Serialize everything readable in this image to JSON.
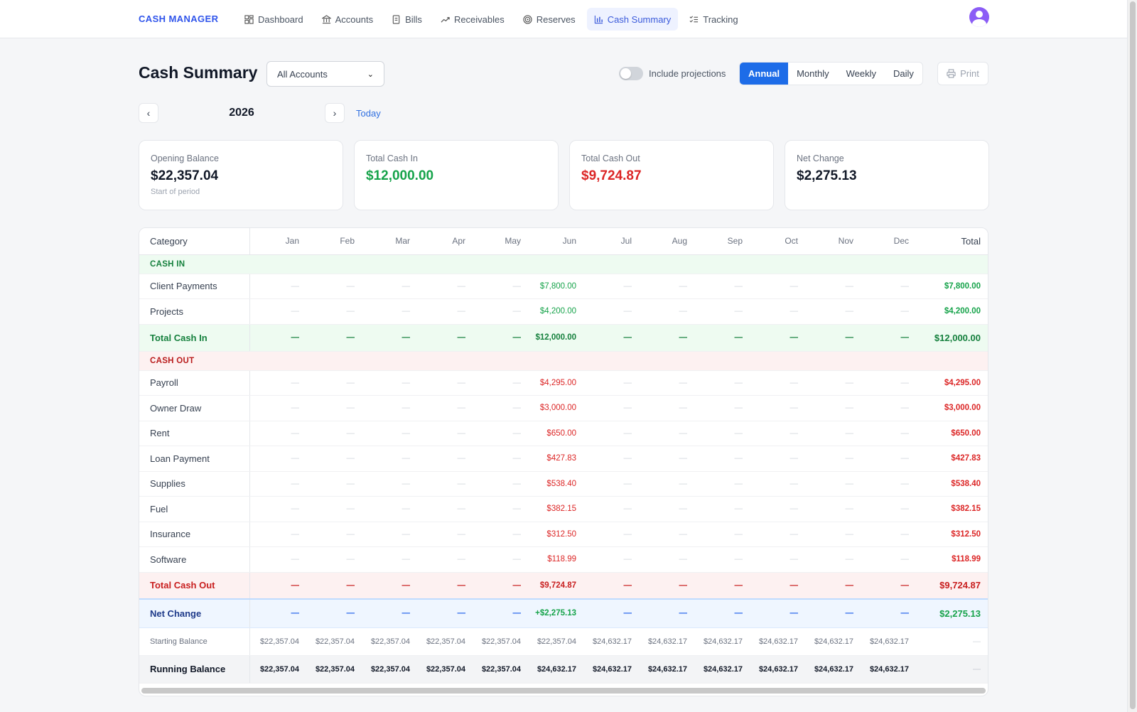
{
  "app": {
    "brand": "CASH MANAGER"
  },
  "nav": {
    "items": [
      {
        "label": "Dashboard",
        "icon": "dashboard-icon",
        "active": false
      },
      {
        "label": "Accounts",
        "icon": "bank-icon",
        "active": false
      },
      {
        "label": "Bills",
        "icon": "receipt-icon",
        "active": false
      },
      {
        "label": "Receivables",
        "icon": "trend-up-icon",
        "active": false
      },
      {
        "label": "Reserves",
        "icon": "target-icon",
        "active": false
      },
      {
        "label": "Cash Summary",
        "icon": "bar-chart-icon",
        "active": true
      },
      {
        "label": "Tracking",
        "icon": "checklist-icon",
        "active": false
      }
    ]
  },
  "header": {
    "title": "Cash Summary",
    "account_select": "All Accounts",
    "projections_label": "Include projections",
    "periods": [
      "Annual",
      "Monthly",
      "Weekly",
      "Daily"
    ],
    "active_period": "Annual",
    "print_label": "Print"
  },
  "period_nav": {
    "year": "2026",
    "today_label": "Today"
  },
  "cards": {
    "opening": {
      "label": "Opening Balance",
      "value": "$22,357.04",
      "sub": "Start of period"
    },
    "cash_in": {
      "label": "Total Cash In",
      "value": "$12,000.00"
    },
    "cash_out": {
      "label": "Total Cash Out",
      "value": "$9,724.87"
    },
    "net": {
      "label": "Net Change",
      "value": "$2,275.13"
    }
  },
  "table": {
    "headers": {
      "category": "Category",
      "months": [
        "Jan",
        "Feb",
        "Mar",
        "Apr",
        "May",
        "Jun",
        "Jul",
        "Aug",
        "Sep",
        "Oct",
        "Nov",
        "Dec"
      ],
      "total": "Total"
    },
    "dash": "—",
    "cash_in_label": "CASH IN",
    "cash_in_rows": [
      {
        "name": "Client Payments",
        "jun": "$7,800.00",
        "total": "$7,800.00"
      },
      {
        "name": "Projects",
        "jun": "$4,200.00",
        "total": "$4,200.00"
      }
    ],
    "total_cash_in": {
      "name": "Total Cash In",
      "jun": "$12,000.00",
      "total": "$12,000.00"
    },
    "cash_out_label": "CASH OUT",
    "cash_out_rows": [
      {
        "name": "Payroll",
        "jun": "$4,295.00",
        "total": "$4,295.00"
      },
      {
        "name": "Owner Draw",
        "jun": "$3,000.00",
        "total": "$3,000.00"
      },
      {
        "name": "Rent",
        "jun": "$650.00",
        "total": "$650.00"
      },
      {
        "name": "Loan Payment",
        "jun": "$427.83",
        "total": "$427.83"
      },
      {
        "name": "Supplies",
        "jun": "$538.40",
        "total": "$538.40"
      },
      {
        "name": "Fuel",
        "jun": "$382.15",
        "total": "$382.15"
      },
      {
        "name": "Insurance",
        "jun": "$312.50",
        "total": "$312.50"
      },
      {
        "name": "Software",
        "jun": "$118.99",
        "total": "$118.99"
      }
    ],
    "total_cash_out": {
      "name": "Total Cash Out",
      "jun": "$9,724.87",
      "total": "$9,724.87"
    },
    "net_change": {
      "name": "Net Change",
      "jun": "+$2,275.13",
      "total": "$2,275.13"
    },
    "starting_balance": {
      "name": "Starting Balance",
      "values": [
        "$22,357.04",
        "$22,357.04",
        "$22,357.04",
        "$22,357.04",
        "$22,357.04",
        "$22,357.04",
        "$24,632.17",
        "$24,632.17",
        "$24,632.17",
        "$24,632.17",
        "$24,632.17",
        "$24,632.17"
      ],
      "total": "—"
    },
    "running_balance": {
      "name": "Running Balance",
      "values": [
        "$22,357.04",
        "$22,357.04",
        "$22,357.04",
        "$22,357.04",
        "$22,357.04",
        "$24,632.17",
        "$24,632.17",
        "$24,632.17",
        "$24,632.17",
        "$24,632.17",
        "$24,632.17",
        "$24,632.17"
      ],
      "total": "—"
    }
  },
  "colors": {
    "accent": "#1d6ce8",
    "brand": "#2f54eb",
    "positive": "#16a34a",
    "negative": "#dc2626"
  }
}
